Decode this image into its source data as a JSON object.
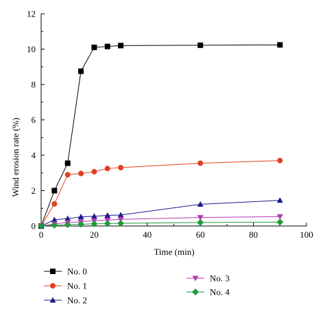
{
  "chart_data": {
    "type": "line",
    "xlabel": "Time (min)",
    "ylabel": "Wind erosion rate (%)",
    "xlim": [
      0,
      100
    ],
    "ylim": [
      0,
      12
    ],
    "xticks": [
      "0",
      "20",
      "40",
      "60",
      "80",
      "100"
    ],
    "yticks": [
      "0",
      "2",
      "4",
      "6",
      "8",
      "10",
      "12"
    ],
    "grid": false,
    "legend_position": "bottom",
    "series": [
      {
        "name": "No. 0",
        "color": "#000000",
        "marker": "square",
        "x": [
          0,
          5,
          10,
          15,
          20,
          25,
          30,
          60,
          90
        ],
        "y": [
          0,
          2.0,
          3.55,
          8.75,
          10.1,
          10.15,
          10.2,
          10.22,
          10.24
        ]
      },
      {
        "name": "No. 1",
        "color": "#e0401f",
        "marker": "circle",
        "x": [
          0,
          5,
          10,
          15,
          20,
          25,
          30,
          60,
          90
        ],
        "y": [
          0,
          1.25,
          2.9,
          2.97,
          3.07,
          3.25,
          3.3,
          3.55,
          3.7
        ]
      },
      {
        "name": "No. 2",
        "color": "#1a1a8c",
        "marker": "triangle-up",
        "x": [
          0,
          5,
          10,
          15,
          20,
          25,
          30,
          60,
          90
        ],
        "y": [
          0,
          0.35,
          0.42,
          0.52,
          0.55,
          0.6,
          0.62,
          1.23,
          1.45
        ]
      },
      {
        "name": "No. 3",
        "color": "#b23ab2",
        "marker": "triangle-down",
        "x": [
          0,
          5,
          10,
          15,
          20,
          25,
          30,
          60,
          90
        ],
        "y": [
          0,
          0.12,
          0.2,
          0.24,
          0.3,
          0.33,
          0.38,
          0.48,
          0.53
        ]
      },
      {
        "name": "No. 4",
        "color": "#1f9a3c",
        "marker": "diamond",
        "x": [
          0,
          5,
          10,
          15,
          20,
          25,
          30,
          60,
          90
        ],
        "y": [
          0,
          0.05,
          0.08,
          0.1,
          0.12,
          0.14,
          0.15,
          0.2,
          0.22
        ]
      }
    ]
  }
}
